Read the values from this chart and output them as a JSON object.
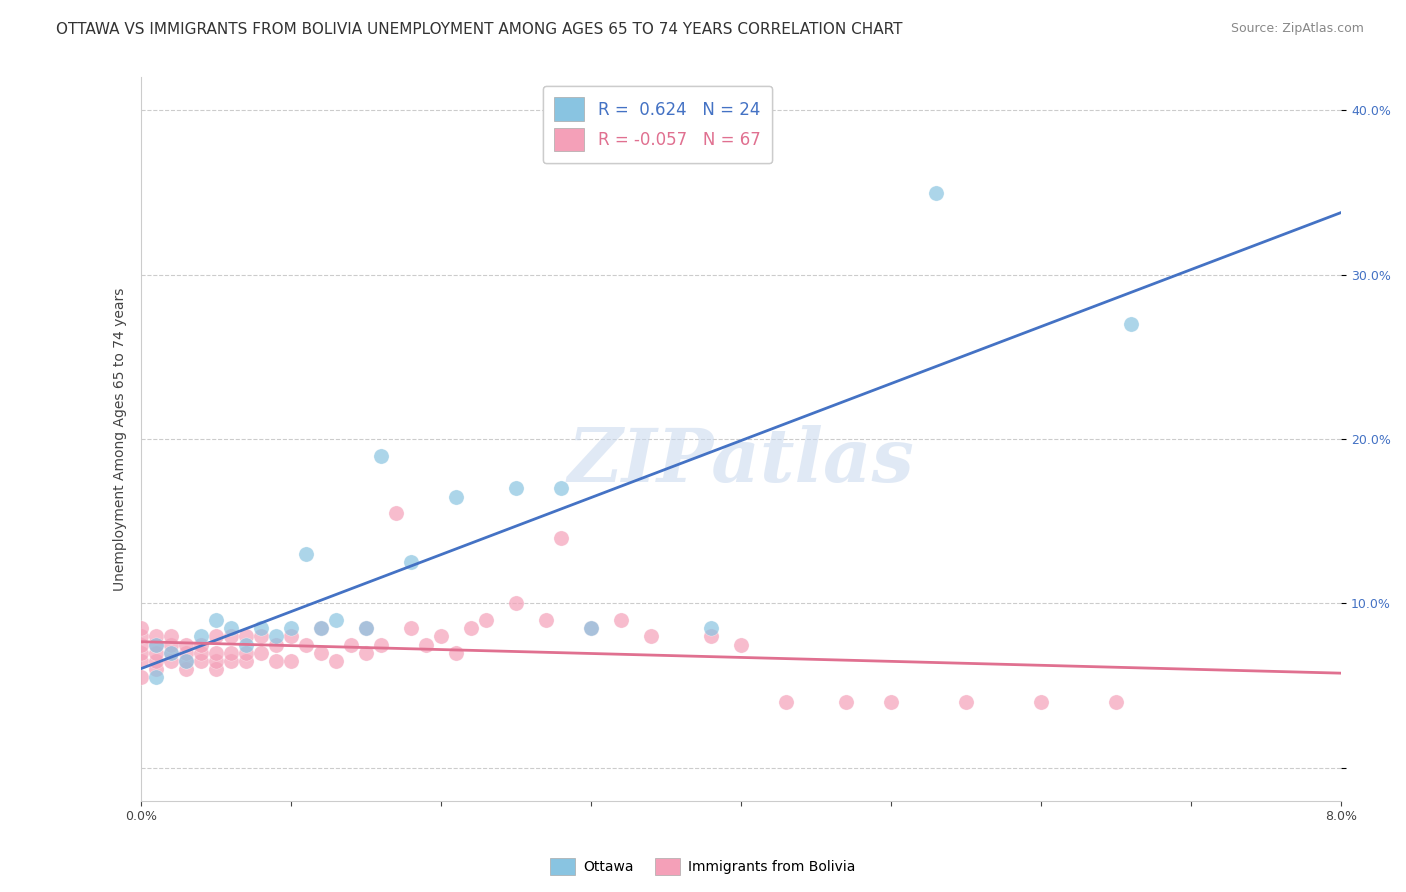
{
  "title": "OTTAWA VS IMMIGRANTS FROM BOLIVIA UNEMPLOYMENT AMONG AGES 65 TO 74 YEARS CORRELATION CHART",
  "source": "Source: ZipAtlas.com",
  "ylabel": "Unemployment Among Ages 65 to 74 years",
  "xlim": [
    0.0,
    0.08
  ],
  "ylim": [
    -0.02,
    0.42
  ],
  "xticks": [
    0.0,
    0.01,
    0.02,
    0.03,
    0.04,
    0.05,
    0.06,
    0.07,
    0.08
  ],
  "xticklabels": [
    "0.0%",
    "",
    "",
    "",
    "",
    "",
    "",
    "",
    "8.0%"
  ],
  "yticks_right": [
    0.0,
    0.1,
    0.2,
    0.3,
    0.4
  ],
  "yticklabels_right": [
    "",
    "10.0%",
    "20.0%",
    "30.0%",
    "40.0%"
  ],
  "ottawa_color": "#89c4e1",
  "bolivia_color": "#f4a0b8",
  "ottawa_line_color": "#4472c4",
  "bolivia_line_color": "#e07090",
  "R_ottawa": 0.624,
  "N_ottawa": 24,
  "R_bolivia": -0.057,
  "N_bolivia": 67,
  "legend_label_ottawa": "Ottawa",
  "legend_label_bolivia": "Immigrants from Bolivia",
  "watermark": "ZIPatlas",
  "background_color": "#ffffff",
  "grid_color": "#cccccc",
  "title_fontsize": 11,
  "axis_label_fontsize": 10,
  "tick_fontsize": 9,
  "ottawa_scatter": {
    "x": [
      0.001,
      0.001,
      0.002,
      0.003,
      0.004,
      0.005,
      0.006,
      0.007,
      0.008,
      0.009,
      0.01,
      0.011,
      0.012,
      0.013,
      0.015,
      0.016,
      0.018,
      0.021,
      0.025,
      0.028,
      0.03,
      0.038,
      0.053,
      0.066
    ],
    "y": [
      0.055,
      0.075,
      0.07,
      0.065,
      0.08,
      0.09,
      0.085,
      0.075,
      0.085,
      0.08,
      0.085,
      0.13,
      0.085,
      0.09,
      0.085,
      0.19,
      0.125,
      0.165,
      0.17,
      0.17,
      0.085,
      0.085,
      0.35,
      0.27
    ]
  },
  "bolivia_scatter": {
    "x": [
      0.0,
      0.0,
      0.0,
      0.0,
      0.0,
      0.0,
      0.001,
      0.001,
      0.001,
      0.001,
      0.001,
      0.002,
      0.002,
      0.002,
      0.002,
      0.003,
      0.003,
      0.003,
      0.003,
      0.004,
      0.004,
      0.004,
      0.005,
      0.005,
      0.005,
      0.005,
      0.006,
      0.006,
      0.006,
      0.007,
      0.007,
      0.007,
      0.008,
      0.008,
      0.009,
      0.009,
      0.01,
      0.01,
      0.011,
      0.012,
      0.012,
      0.013,
      0.014,
      0.015,
      0.015,
      0.016,
      0.017,
      0.018,
      0.019,
      0.02,
      0.021,
      0.022,
      0.023,
      0.025,
      0.027,
      0.028,
      0.03,
      0.032,
      0.034,
      0.038,
      0.04,
      0.043,
      0.047,
      0.05,
      0.055,
      0.06,
      0.065
    ],
    "y": [
      0.055,
      0.065,
      0.07,
      0.075,
      0.08,
      0.085,
      0.06,
      0.065,
      0.07,
      0.075,
      0.08,
      0.065,
      0.07,
      0.075,
      0.08,
      0.06,
      0.065,
      0.07,
      0.075,
      0.065,
      0.07,
      0.075,
      0.06,
      0.065,
      0.07,
      0.08,
      0.065,
      0.07,
      0.08,
      0.065,
      0.07,
      0.08,
      0.07,
      0.08,
      0.065,
      0.075,
      0.065,
      0.08,
      0.075,
      0.07,
      0.085,
      0.065,
      0.075,
      0.07,
      0.085,
      0.075,
      0.155,
      0.085,
      0.075,
      0.08,
      0.07,
      0.085,
      0.09,
      0.1,
      0.09,
      0.14,
      0.085,
      0.09,
      0.08,
      0.08,
      0.075,
      0.04,
      0.04,
      0.04,
      0.04,
      0.04,
      0.04
    ]
  }
}
